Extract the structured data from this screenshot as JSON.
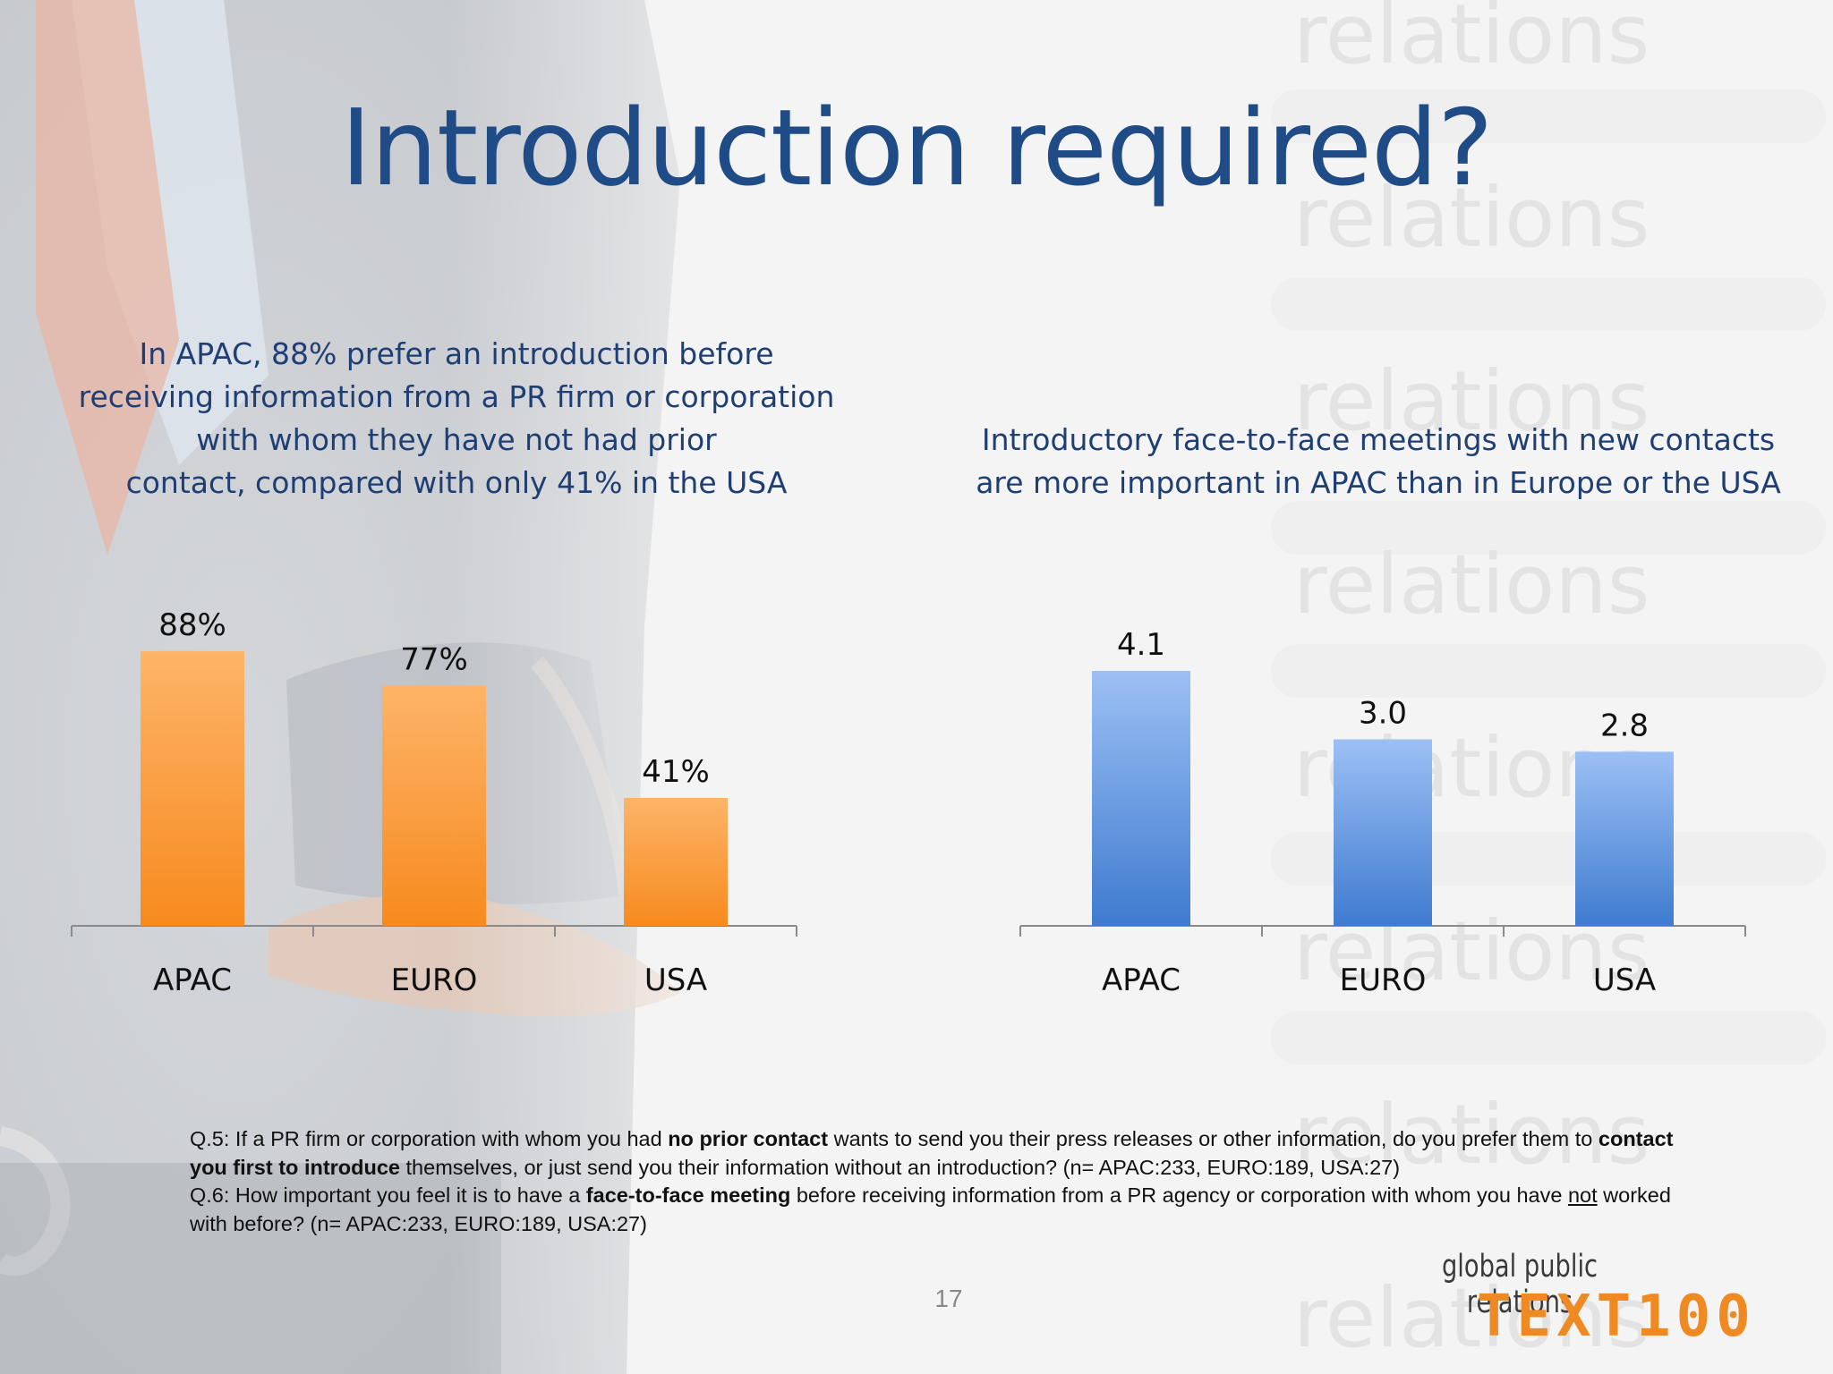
{
  "slide": {
    "title": "Introduction required?",
    "left_subtitle": [
      "In APAC, 88% prefer an introduction before",
      "receiving information from a PR firm or corporation",
      "with whom they have not had prior",
      "contact, compared with only 41% in the USA"
    ],
    "right_subtitle": [
      "Introductory face-to-face meetings with new contacts",
      "are more important in APAC than in Europe or the USA"
    ],
    "footnote": {
      "q5_a": "Q.5: If a PR firm or corporation with whom you had ",
      "q5_b": "no prior contact",
      "q5_c": " wants to send you their press releases or other information, do you prefer them to ",
      "q5_d": "contact you first to introduce",
      "q5_e": " themselves, or just send you their information without an introduction? (n= APAC:233, EURO:189, USA:27)",
      "q6_a": "Q.6: How important you feel it is to have a ",
      "q6_b": "face-to-face meeting",
      "q6_c": " before receiving information from a PR agency or corporation with whom you have ",
      "q6_d": "not",
      "q6_e": " worked with before? (n= APAC:233, EURO:189, USA:27)"
    },
    "page_number": "17",
    "tagline": "global public relations",
    "brand": "TEXT100",
    "watermark_word": "relations",
    "colors": {
      "title": "#1f4b86",
      "subtitle": "#1f3f74",
      "orange_bar_top": "#fdb468",
      "orange_bar_bottom": "#f78a1e",
      "blue_bar_top": "#9cc0f4",
      "blue_bar_bottom": "#3f7bcf",
      "brand": "#ef8a22"
    }
  },
  "chart_data": [
    {
      "type": "bar",
      "categories": [
        "APAC",
        "EURO",
        "USA"
      ],
      "values": [
        88,
        77,
        41
      ],
      "data_labels": [
        "88%",
        "77%",
        "41%"
      ],
      "ylim": [
        0,
        100
      ],
      "grid": false,
      "legend": "none"
    },
    {
      "type": "bar",
      "categories": [
        "APAC",
        "EURO",
        "USA"
      ],
      "values": [
        4.1,
        3.0,
        2.8
      ],
      "data_labels": [
        "4.1",
        "3.0",
        "2.8"
      ],
      "ylim": [
        0,
        5
      ],
      "grid": false,
      "legend": "none"
    }
  ]
}
